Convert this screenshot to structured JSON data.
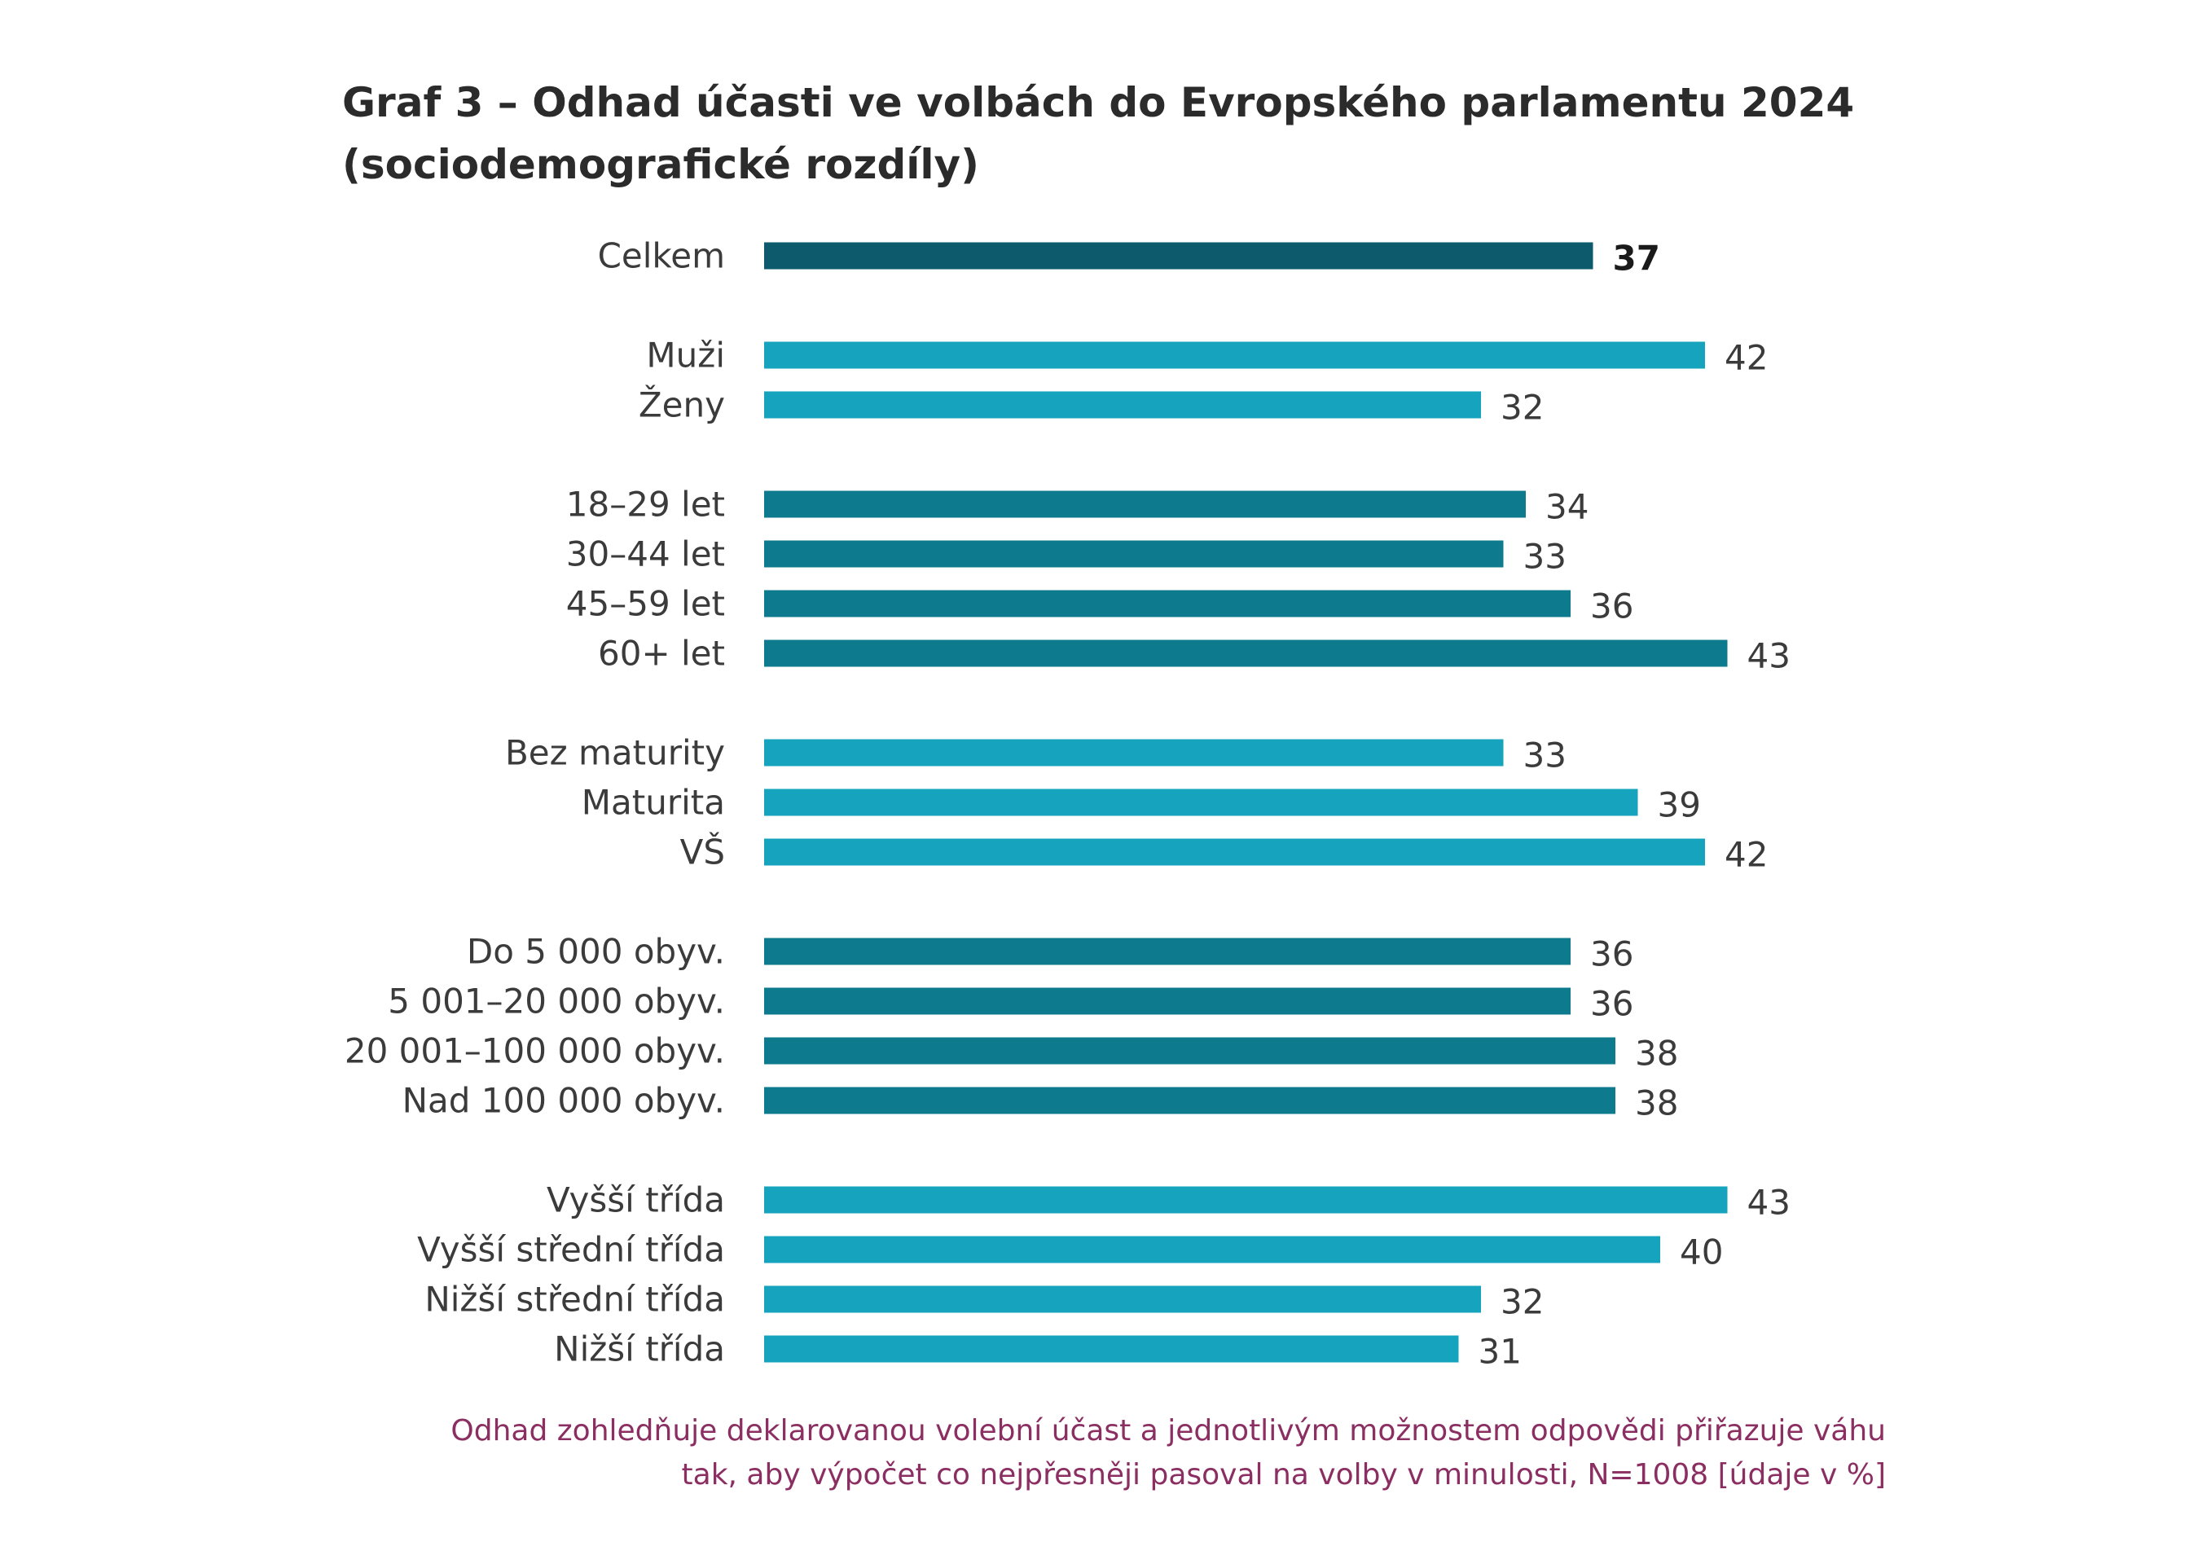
{
  "chart_data": {
    "type": "bar",
    "orientation": "horizontal",
    "title": [
      "Graf 3 – Odhad účasti ve volbách do Evropského parlamentu 2024",
      "(sociodemografické rozdíly)"
    ],
    "categories": [
      "Celkem",
      "Muži",
      "Ženy",
      "18–29 let",
      "30–44 let",
      "45–59 let",
      "60+ let",
      "Bez maturity",
      "Maturita",
      "VŠ",
      "Do 5 000 obyv.",
      "5 001–20 000 obyv.",
      "20 001–100 000 obyv.",
      "Nad 100 000 obyv.",
      "Vyšší třída",
      "Vyšší střední třída",
      "Nižší střední třída",
      "Nižší třída"
    ],
    "values": [
      37,
      42,
      32,
      34,
      33,
      36,
      43,
      33,
      39,
      42,
      36,
      36,
      38,
      38,
      43,
      40,
      32,
      31
    ],
    "groups": [
      0,
      1,
      1,
      2,
      2,
      2,
      2,
      3,
      3,
      3,
      4,
      4,
      4,
      4,
      5,
      5,
      5,
      5
    ],
    "bar_colors": [
      "#0c5a6b",
      "#16a3be",
      "#16a3be",
      "#0e7a8e",
      "#0e7a8e",
      "#0e7a8e",
      "#0e7a8e",
      "#16a3be",
      "#16a3be",
      "#16a3be",
      "#0e7a8e",
      "#0e7a8e",
      "#0e7a8e",
      "#0e7a8e",
      "#16a3be",
      "#16a3be",
      "#16a3be",
      "#16a3be"
    ],
    "bold_values": [
      0
    ],
    "xlim": [
      0,
      43
    ],
    "grid": false,
    "footnote": [
      "Odhad zohledňuje deklarovanou volební účast a jednotlivým možnostem odpovědi přiřazuje váhu",
      "tak, aby výpočet co nejpřesněji pasoval na volby v minulosti, N=1008 [údaje v %]"
    ]
  }
}
